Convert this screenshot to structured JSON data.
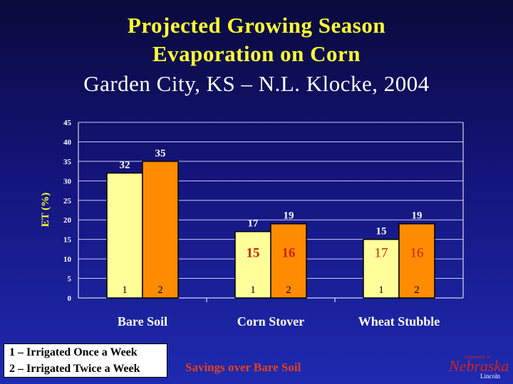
{
  "title": {
    "line1": "Projected Growing Season",
    "line2": "Evaporation on Corn",
    "line3": "Garden City, KS – N.L. Klocke, 2004"
  },
  "colors": {
    "series1": "#ffff99",
    "series2": "#ff8c00",
    "savings": "#e8401c",
    "axis_label": "#ffff33",
    "text": "#ffffff"
  },
  "chart_data": {
    "type": "bar",
    "categories": [
      "Bare Soil",
      "Corn Stover",
      "Wheat Stubble"
    ],
    "series": [
      {
        "name": "1",
        "values": [
          32,
          17,
          15
        ],
        "savings": [
          null,
          15,
          17
        ]
      },
      {
        "name": "2",
        "values": [
          35,
          19,
          19
        ],
        "savings": [
          null,
          16,
          16
        ]
      }
    ],
    "ylabel": "ET (%)",
    "ylim": [
      0,
      45
    ],
    "yticks": [
      0,
      5,
      10,
      15,
      20,
      25,
      30,
      35,
      40,
      45
    ],
    "grid": true
  },
  "legend": {
    "line1": "1 – Irrigated Once a Week",
    "line2": "2 – Irrigated Twice a Week"
  },
  "savings_label": "Savings over Bare Soil",
  "logo": {
    "university": "University of",
    "name": "Nebraska",
    "campus": "Lincoln"
  }
}
